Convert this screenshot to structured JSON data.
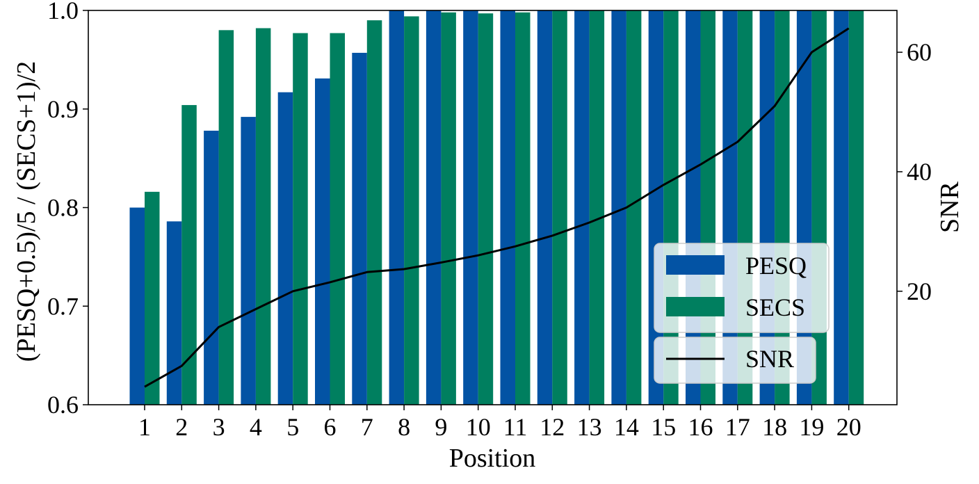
{
  "chart_data": {
    "type": "bar",
    "title": "",
    "xlabel": "Position",
    "ylabel": "(PESQ+0.5)/5 / (SECS+1)/2",
    "y2label": "SNR",
    "categories": [
      "1",
      "2",
      "3",
      "4",
      "5",
      "6",
      "7",
      "8",
      "9",
      "10",
      "11",
      "12",
      "13",
      "14",
      "15",
      "16",
      "17",
      "18",
      "19",
      "20"
    ],
    "ylim": [
      0.6,
      1.0
    ],
    "y2lim": [
      1.0,
      67.0
    ],
    "yticks": [
      "0.6",
      "0.7",
      "0.8",
      "0.9",
      "1.0"
    ],
    "y2ticks": [
      "20",
      "40",
      "60"
    ],
    "grid": false,
    "legend_placement": "lower-right",
    "series": [
      {
        "name": "PESQ",
        "kind": "bar",
        "axis": "left",
        "color": "#0353a4",
        "values": [
          0.8,
          0.786,
          0.878,
          0.892,
          0.917,
          0.931,
          0.957,
          1.0,
          1.0,
          1.0,
          1.0,
          1.0,
          1.0,
          1.0,
          1.0,
          1.0,
          1.0,
          1.0,
          1.0,
          1.0
        ]
      },
      {
        "name": "SECS",
        "kind": "bar",
        "axis": "left",
        "color": "#007f5f",
        "values": [
          0.816,
          0.904,
          0.98,
          0.982,
          0.977,
          0.977,
          0.99,
          0.994,
          0.998,
          0.997,
          0.998,
          1.0,
          1.0,
          1.0,
          1.001,
          1.001,
          1.001,
          1.001,
          1.001,
          1.001
        ]
      },
      {
        "name": "SNR",
        "kind": "line",
        "axis": "right",
        "color": "#000000",
        "values": [
          4.0,
          7.5,
          14.0,
          17.0,
          20.0,
          21.5,
          23.2,
          23.7,
          24.8,
          26.0,
          27.5,
          29.3,
          31.5,
          34.0,
          37.8,
          41.2,
          45.0,
          51.0,
          60.0,
          64.0
        ]
      }
    ]
  }
}
